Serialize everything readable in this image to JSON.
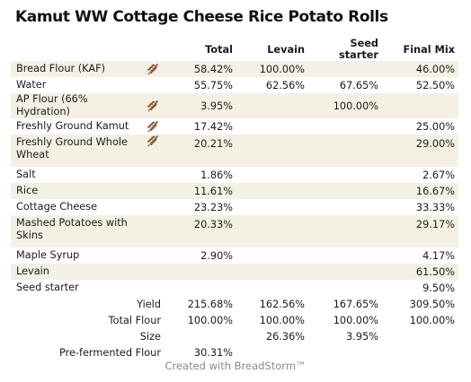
{
  "title": "Kamut WW Cottage Cheese Rice Potato Rolls",
  "columns": {
    "total": "Total",
    "levain": "Levain",
    "seed_starter": "Seed starter",
    "final_mix": "Final Mix"
  },
  "colors": {
    "row_alt": "#f4f0e3",
    "icon": "#8a5a3c",
    "footer": "#8a8a8a"
  },
  "rows": [
    {
      "name": "Bread Flour (KAF)",
      "icon": "wheat-icon",
      "total": "58.42%",
      "levain": "100.00%",
      "seed": "",
      "final": "46.00%"
    },
    {
      "name": "Water",
      "icon": "",
      "total": "55.75%",
      "levain": "62.56%",
      "seed": "67.65%",
      "final": "52.50%"
    },
    {
      "name": "AP Flour (66% Hydration)",
      "icon": "wheat-icon",
      "total": "3.95%",
      "levain": "",
      "seed": "100.00%",
      "final": ""
    },
    {
      "name": "Freshly Ground Kamut",
      "icon": "wheat-icon",
      "total": "17.42%",
      "levain": "",
      "seed": "",
      "final": "25.00%"
    },
    {
      "name": "Freshly Ground Whole Wheat",
      "icon": "wheat-icon",
      "total": "20.21%",
      "levain": "",
      "seed": "",
      "final": "29.00%"
    },
    {
      "name": "Salt",
      "icon": "",
      "total": "1.86%",
      "levain": "",
      "seed": "",
      "final": "2.67%"
    },
    {
      "name": "Rice",
      "icon": "",
      "total": "11.61%",
      "levain": "",
      "seed": "",
      "final": "16.67%"
    },
    {
      "name": "Cottage Cheese",
      "icon": "",
      "total": "23.23%",
      "levain": "",
      "seed": "",
      "final": "33.33%"
    },
    {
      "name": "Mashed Potatoes with Skins",
      "icon": "",
      "total": "20.33%",
      "levain": "",
      "seed": "",
      "final": "29.17%"
    },
    {
      "name": "Maple Syrup",
      "icon": "",
      "total": "2.90%",
      "levain": "",
      "seed": "",
      "final": "4.17%"
    },
    {
      "name": "Levain",
      "icon": "",
      "total": "",
      "levain": "",
      "seed": "",
      "final": "61.50%"
    },
    {
      "name": "Seed starter",
      "icon": "",
      "total": "",
      "levain": "",
      "seed": "",
      "final": "9.50%"
    }
  ],
  "summary": [
    {
      "label": "Yield",
      "total": "215.68%",
      "levain": "162.56%",
      "seed": "167.65%",
      "final": "309.50%"
    },
    {
      "label": "Total Flour",
      "total": "100.00%",
      "levain": "100.00%",
      "seed": "100.00%",
      "final": "100.00%"
    },
    {
      "label": "Size",
      "total": "",
      "levain": "26.36%",
      "seed": "3.95%",
      "final": ""
    },
    {
      "label": "Pre-fermented Flour",
      "total": "30.31%",
      "levain": "",
      "seed": "",
      "final": ""
    }
  ],
  "footer": "Created with BreadStorm™"
}
